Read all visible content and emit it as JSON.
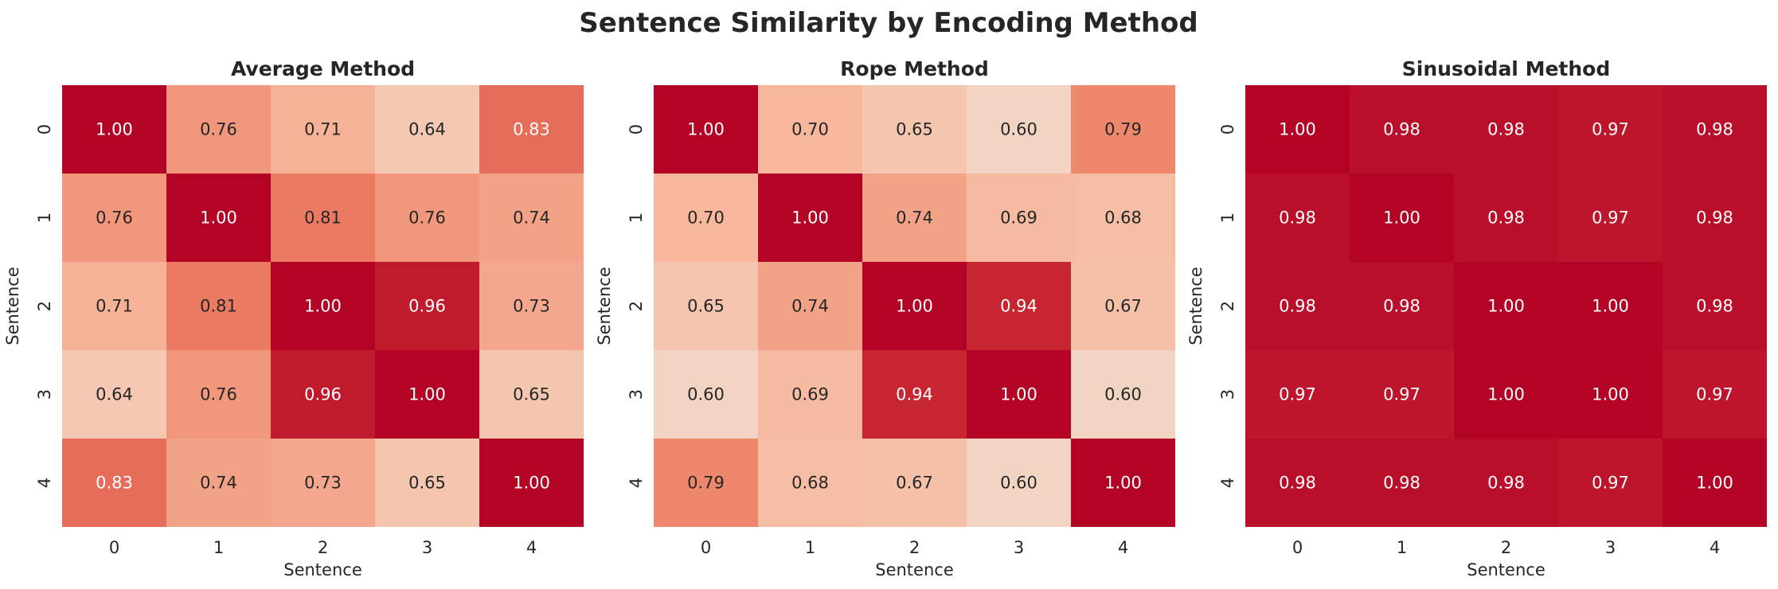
{
  "title": "Sentence Similarity by Encoding Method",
  "colors": {
    "low": "#f2d4c3",
    "high": "#b40426",
    "text_dark": "#262626",
    "text_light": "#ffffff"
  },
  "chart_data": [
    {
      "type": "heatmap",
      "title": "Average Method",
      "xlabel": "Sentence",
      "ylabel": "Sentence",
      "x_ticks": [
        "0",
        "1",
        "2",
        "3",
        "4"
      ],
      "y_ticks": [
        "0",
        "1",
        "2",
        "3",
        "4"
      ],
      "values": [
        [
          1.0,
          0.76,
          0.71,
          0.64,
          0.83
        ],
        [
          0.76,
          1.0,
          0.81,
          0.76,
          0.74
        ],
        [
          0.71,
          0.81,
          1.0,
          0.96,
          0.73
        ],
        [
          0.64,
          0.76,
          0.96,
          1.0,
          0.65
        ],
        [
          0.83,
          0.74,
          0.73,
          0.65,
          1.0
        ]
      ]
    },
    {
      "type": "heatmap",
      "title": "Rope Method",
      "xlabel": "Sentence",
      "ylabel": "Sentence",
      "x_ticks": [
        "0",
        "1",
        "2",
        "3",
        "4"
      ],
      "y_ticks": [
        "0",
        "1",
        "2",
        "3",
        "4"
      ],
      "values": [
        [
          1.0,
          0.7,
          0.65,
          0.6,
          0.79
        ],
        [
          0.7,
          1.0,
          0.74,
          0.69,
          0.68
        ],
        [
          0.65,
          0.74,
          1.0,
          0.94,
          0.67
        ],
        [
          0.6,
          0.69,
          0.94,
          1.0,
          0.6
        ],
        [
          0.79,
          0.68,
          0.67,
          0.6,
          1.0
        ]
      ]
    },
    {
      "type": "heatmap",
      "title": "Sinusoidal Method",
      "xlabel": "Sentence",
      "ylabel": "Sentence",
      "x_ticks": [
        "0",
        "1",
        "2",
        "3",
        "4"
      ],
      "y_ticks": [
        "0",
        "1",
        "2",
        "3",
        "4"
      ],
      "values": [
        [
          1.0,
          0.98,
          0.98,
          0.97,
          0.98
        ],
        [
          0.98,
          1.0,
          0.98,
          0.97,
          0.98
        ],
        [
          0.98,
          0.98,
          1.0,
          1.0,
          0.98
        ],
        [
          0.97,
          0.97,
          1.0,
          1.0,
          0.97
        ],
        [
          0.98,
          0.98,
          0.98,
          0.97,
          1.0
        ]
      ]
    }
  ]
}
